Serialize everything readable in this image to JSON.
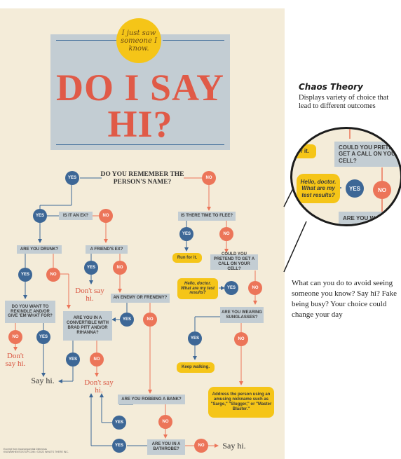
{
  "poster": {
    "bubble_text": "I just saw someone I know.",
    "title_line1": "DO I SAY",
    "title_line2": "HI?",
    "credit_line1": "Excerpt from Inconsequential Dilemmas",
    "credit_line2": "KNOWWHENTOSTOP.COM • ©2022 WHAT'S THERE INC.",
    "questions": {
      "remember": "DO YOU REMEMBER THE PERSON'S NAME?",
      "is_ex": "IS IT AN EX?",
      "time_flee": "IS THERE TIME TO FLEE?",
      "drunk": "ARE YOU DRUNK?",
      "friends_ex": "A FRIEND'S EX?",
      "enemy": "AN ENEMY OR FRENEMY?",
      "rekindle": "DO YOU WANT TO REKINDLE AND/OR GIVE 'EM WHAT FOR?",
      "convertible": "ARE YOU IN A CONVERTIBLE WITH BRAD PITT AND/OR RIHANNA?",
      "pretend_call": "COULD YOU PRETEND TO GET A CALL ON YOUR CELL?",
      "sunglasses": "ARE YOU WEARING SUNGLASSES?",
      "robbing": "ARE YOU ROBBING A BANK?",
      "bathrobe": "ARE YOU IN A BATHROBE?"
    },
    "actions": {
      "run": "Run for it.",
      "doctor": "Hello, doctor. What are my test results?",
      "keep_walking": "Keep walking.",
      "nickname": "Address the person using an amusing nickname such as \"Sarge,\" \"Slugger,\" or \"Master Blaster.\""
    },
    "outcomes": {
      "dont_say_hi": "Don't say hi.",
      "say_hi": "Say hi."
    },
    "labels": {
      "yes": "YES",
      "no": "NO"
    }
  },
  "zoom": {
    "fragment_left": "for it.",
    "fragment_question": "COULD YOU PRETEND TO GET A CALL ON YOUR CELL?",
    "fragment_doctor": "Hello, doctor. What are my test results?",
    "fragment_bottom": "ARE YOU W"
  },
  "side": {
    "title": "Chaos Theory",
    "description": "Displays variety of choice that lead to different outcomes",
    "paragraph": "What can you do to avoid seeing someone you know? Say hi? Fake being busy? Your choice could change your day"
  },
  "colors": {
    "poster_bg": "#f4ecd9",
    "title_red": "#e05a47",
    "yes_blue": "#3d6796",
    "no_coral": "#ec7559",
    "box_gray": "#c3cdd3",
    "accent_yellow": "#f5c518"
  }
}
